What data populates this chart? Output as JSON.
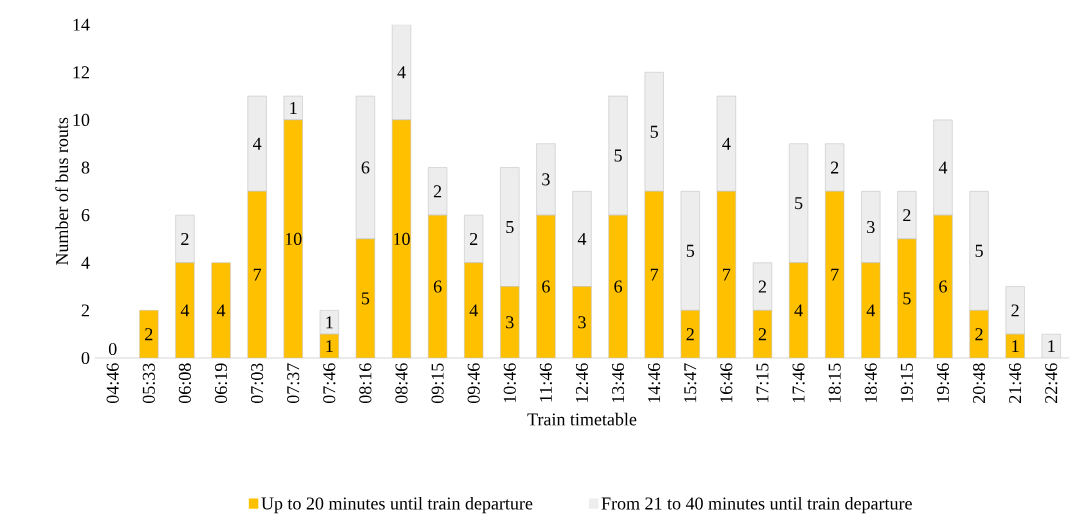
{
  "chart_data": {
    "type": "bar",
    "stacked": true,
    "xlabel": "Train timetable",
    "ylabel": "Number of bus routs",
    "categories": [
      "04:46",
      "05:33",
      "06:08",
      "06:19",
      "07:03",
      "07:37",
      "07:46",
      "08:16",
      "08:46",
      "09:15",
      "09:46",
      "10:46",
      "11:46",
      "12:46",
      "13:46",
      "14:46",
      "15:47",
      "16:46",
      "17:15",
      "17:46",
      "18:15",
      "18:46",
      "19:15",
      "19:46",
      "20:48",
      "21:46",
      "22:46"
    ],
    "series": [
      {
        "name": "Up to 20 minutes until train departure",
        "color": "#ffc000",
        "values": [
          0,
          2,
          4,
          4,
          7,
          10,
          1,
          5,
          10,
          6,
          4,
          3,
          6,
          3,
          6,
          7,
          2,
          7,
          2,
          4,
          7,
          4,
          5,
          6,
          2,
          1,
          0
        ],
        "value_labels": [
          "0",
          "2",
          "4",
          "4",
          "7",
          "10",
          "1",
          "5",
          "10",
          "6",
          "4",
          "3",
          "6",
          "3",
          "6",
          "7",
          "2",
          "7",
          "2",
          "4",
          "7",
          "4",
          "5",
          "6",
          "2",
          "1",
          null
        ]
      },
      {
        "name": "From 21 to 40 minutes until train departure",
        "color": "#ededed",
        "values": [
          0,
          0,
          2,
          0,
          4,
          1,
          1,
          6,
          4,
          2,
          2,
          5,
          3,
          4,
          5,
          5,
          5,
          4,
          2,
          5,
          2,
          3,
          2,
          4,
          5,
          2,
          1
        ],
        "value_labels": [
          null,
          null,
          "2",
          null,
          "4",
          "1",
          "1",
          "6",
          "4",
          "2",
          "2",
          "5",
          "3",
          "4",
          "5",
          "5",
          "5",
          "4",
          "2",
          "5",
          "2",
          "3",
          "2",
          "4",
          "5",
          "2",
          "1"
        ]
      }
    ],
    "ylim": [
      0,
      14
    ],
    "yticks": [
      0,
      2,
      4,
      6,
      8,
      10,
      12,
      14
    ],
    "legend": "bottom",
    "grid": false
  }
}
